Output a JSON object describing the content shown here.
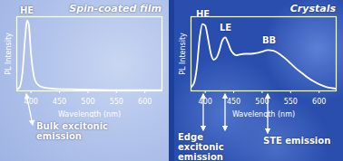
{
  "chart_data": [
    {
      "type": "line",
      "title": "Spin-coated film",
      "x_label": "Wavelength (nm)",
      "y_label": "PL Intensity",
      "x": [
        375,
        380,
        385,
        390,
        393,
        396,
        400,
        405,
        410,
        420,
        440,
        480,
        550,
        630
      ],
      "series": [
        {
          "color": "#ffffff",
          "values": [
            0.02,
            0.05,
            0.25,
            0.75,
            0.95,
            0.9,
            0.5,
            0.2,
            0.1,
            0.05,
            0.03,
            0.02,
            0.01,
            0.01
          ]
        }
      ],
      "xlim": [
        375,
        630
      ],
      "xticks": [
        400,
        450,
        500,
        550,
        600
      ],
      "ylim": [
        0,
        1
      ],
      "yticks": [],
      "tick_labels": "x",
      "annotations": [
        "HE",
        "Bulk excitonic emission"
      ]
    },
    {
      "type": "line",
      "title": "Crystals",
      "x_label": "Wavelength (nm)",
      "y_label": "PL Intensity",
      "x": [
        375,
        380,
        385,
        390,
        395,
        400,
        405,
        410,
        415,
        420,
        425,
        430,
        435,
        440,
        445,
        450,
        455,
        460,
        470,
        480,
        490,
        500,
        510,
        520,
        530,
        540,
        550,
        560,
        570,
        580,
        590,
        600,
        610,
        620,
        630
      ],
      "series": [
        {
          "color": "#ffffff",
          "values": [
            0.05,
            0.1,
            0.3,
            0.7,
            0.9,
            0.88,
            0.7,
            0.5,
            0.42,
            0.45,
            0.55,
            0.68,
            0.72,
            0.65,
            0.55,
            0.5,
            0.48,
            0.49,
            0.5,
            0.5,
            0.51,
            0.53,
            0.55,
            0.54,
            0.5,
            0.44,
            0.37,
            0.3,
            0.24,
            0.18,
            0.13,
            0.09,
            0.06,
            0.04,
            0.03
          ]
        }
      ],
      "xlim": [
        375,
        630
      ],
      "xticks": [
        400,
        450,
        500,
        550,
        600
      ],
      "ylim": [
        0,
        1
      ],
      "yticks": [],
      "tick_labels": "x",
      "annotations": [
        "HE",
        "LE",
        "BB",
        "Edge excitonic emission",
        "STE emission"
      ]
    }
  ]
}
